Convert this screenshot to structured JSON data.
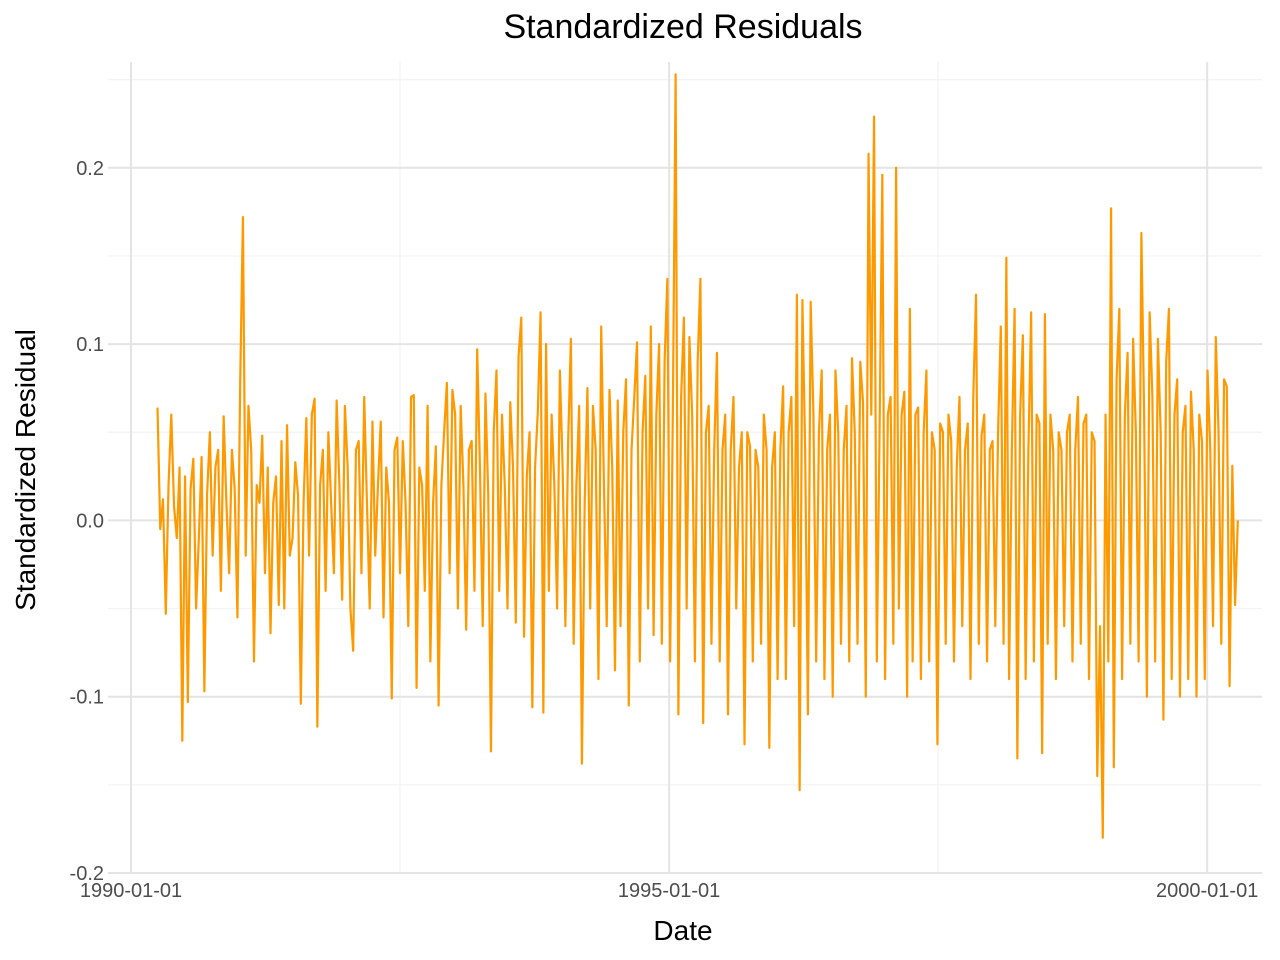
{
  "chart_data": {
    "type": "line",
    "title": "Standardized Residuals",
    "xlabel": "Date",
    "ylabel": "Standardized Residual",
    "x_axis_type": "date",
    "x_ticks": [
      "1990-01-01",
      "1995-01-01",
      "2000-01-01"
    ],
    "y_ticks": [
      "-0.2",
      "-0.1",
      "0.0",
      "0.1",
      "0.2"
    ],
    "xlim": [
      "1989-10-15",
      "2000-07-05"
    ],
    "ylim": [
      -0.2,
      0.26
    ],
    "grid": true,
    "legend": "none",
    "color": "#FF9900",
    "series": [
      {
        "x_start": "1990-04-01",
        "x_end": "2000-04-14",
        "frequency": "daily (business days)",
        "values": [
          0.064,
          -0.005,
          0.012,
          -0.053,
          0.02,
          0.06,
          0.008,
          -0.01,
          0.03,
          -0.125,
          0.025,
          -0.103,
          0.018,
          0.035,
          -0.05,
          -0.01,
          0.036,
          -0.097,
          0.015,
          0.05,
          -0.02,
          0.03,
          0.04,
          -0.04,
          0.059,
          0.01,
          -0.03,
          0.04,
          0.018,
          -0.055,
          0.078,
          0.172,
          -0.02,
          0.065,
          0.04,
          -0.08,
          0.02,
          0.01,
          0.048,
          -0.03,
          0.03,
          -0.064,
          0.01,
          0.025,
          -0.048,
          0.045,
          -0.05,
          0.054,
          -0.02,
          -0.01,
          0.033,
          0.014,
          -0.104,
          0.01,
          0.058,
          -0.02,
          0.06,
          0.069,
          -0.117,
          0.02,
          0.04,
          -0.04,
          0.05,
          0.01,
          -0.03,
          0.068,
          0.02,
          -0.045,
          0.065,
          0.03,
          -0.05,
          -0.074,
          0.04,
          0.045,
          -0.03,
          0.07,
          0.01,
          -0.05,
          0.056,
          -0.02,
          0.02,
          0.056,
          -0.055,
          0.03,
          0.01,
          -0.101,
          0.04,
          0.047,
          -0.03,
          0.045,
          0.01,
          -0.06,
          0.07,
          0.071,
          -0.095,
          0.03,
          0.02,
          -0.04,
          0.065,
          -0.08,
          0.01,
          0.042,
          -0.105,
          0.02,
          0.05,
          0.078,
          -0.03,
          0.074,
          0.06,
          -0.05,
          0.065,
          0.02,
          -0.062,
          0.04,
          0.045,
          -0.04,
          0.097,
          0.03,
          -0.06,
          0.072,
          0.015,
          -0.131,
          0.05,
          0.085,
          -0.04,
          0.06,
          0.02,
          -0.05,
          0.067,
          0.03,
          -0.058,
          0.093,
          0.115,
          -0.066,
          0.025,
          0.05,
          -0.106,
          0.03,
          0.062,
          0.118,
          -0.109,
          0.1,
          -0.04,
          0.06,
          0.02,
          -0.05,
          0.085,
          0.03,
          -0.06,
          0.045,
          0.103,
          -0.07,
          0.02,
          0.065,
          -0.138,
          0.01,
          0.075,
          -0.05,
          0.065,
          0.04,
          -0.09,
          0.11,
          0.02,
          -0.06,
          0.074,
          0.03,
          -0.085,
          0.068,
          -0.06,
          0.05,
          0.08,
          -0.105,
          0.04,
          0.07,
          0.101,
          -0.08,
          0.05,
          0.082,
          -0.05,
          0.11,
          -0.065,
          0.06,
          0.1,
          -0.07,
          0.09,
          0.137,
          -0.08,
          0.063,
          0.253,
          -0.11,
          0.07,
          0.115,
          -0.05,
          0.104,
          0.06,
          -0.08,
          0.09,
          0.137,
          -0.115,
          0.05,
          0.065,
          -0.07,
          0.04,
          0.095,
          -0.08,
          0.04,
          0.06,
          -0.11,
          0.04,
          0.07,
          -0.05,
          0.03,
          0.05,
          -0.127,
          0.05,
          0.042,
          -0.08,
          0.04,
          0.03,
          -0.07,
          0.06,
          0.04,
          -0.129,
          0.03,
          0.05,
          -0.09,
          0.04,
          0.076,
          -0.09,
          0.05,
          0.07,
          -0.06,
          0.128,
          -0.153,
          0.125,
          0.04,
          -0.11,
          0.124,
          0.06,
          -0.08,
          0.05,
          0.085,
          -0.09,
          0.04,
          0.06,
          -0.1,
          0.085,
          0.05,
          -0.07,
          0.04,
          0.065,
          -0.08,
          0.092,
          0.05,
          -0.07,
          0.09,
          0.067,
          -0.1,
          0.208,
          0.06,
          0.229,
          -0.08,
          0.05,
          0.196,
          -0.09,
          0.06,
          0.07,
          -0.07,
          0.2,
          -0.05,
          0.06,
          0.073,
          -0.1,
          0.12,
          -0.08,
          0.06,
          0.064,
          -0.09,
          0.05,
          0.085,
          -0.08,
          0.05,
          0.04,
          -0.127,
          0.055,
          0.05,
          -0.07,
          0.06,
          0.045,
          -0.08,
          0.03,
          0.07,
          -0.06,
          0.04,
          0.055,
          -0.09,
          0.07,
          0.128,
          -0.07,
          0.048,
          0.06,
          -0.08,
          0.04,
          0.045,
          -0.06,
          0.05,
          0.11,
          -0.07,
          0.149,
          -0.09,
          0.04,
          0.12,
          -0.135,
          0.06,
          0.105,
          -0.09,
          0.04,
          0.118,
          -0.08,
          0.06,
          0.055,
          -0.132,
          0.117,
          -0.07,
          0.06,
          0.04,
          -0.09,
          0.05,
          0.04,
          -0.06,
          0.05,
          0.06,
          -0.08,
          0.04,
          0.07,
          -0.07,
          0.055,
          0.06,
          -0.09,
          0.05,
          0.045,
          -0.145,
          -0.06,
          -0.18,
          0.06,
          -0.08,
          0.177,
          -0.14,
          0.08,
          0.12,
          -0.09,
          0.06,
          0.095,
          -0.07,
          0.103,
          0.05,
          -0.08,
          0.163,
          0.06,
          -0.1,
          0.118,
          0.07,
          -0.08,
          0.103,
          0.05,
          -0.113,
          0.09,
          0.12,
          -0.09,
          0.06,
          0.08,
          -0.1,
          0.05,
          0.065,
          -0.09,
          0.073,
          0.04,
          -0.1,
          0.06,
          0.045,
          -0.09,
          0.085,
          0.04,
          -0.06,
          0.104,
          0.05,
          -0.07,
          0.08,
          0.076,
          -0.094,
          0.031,
          -0.048,
          0.0
        ]
      }
    ]
  }
}
